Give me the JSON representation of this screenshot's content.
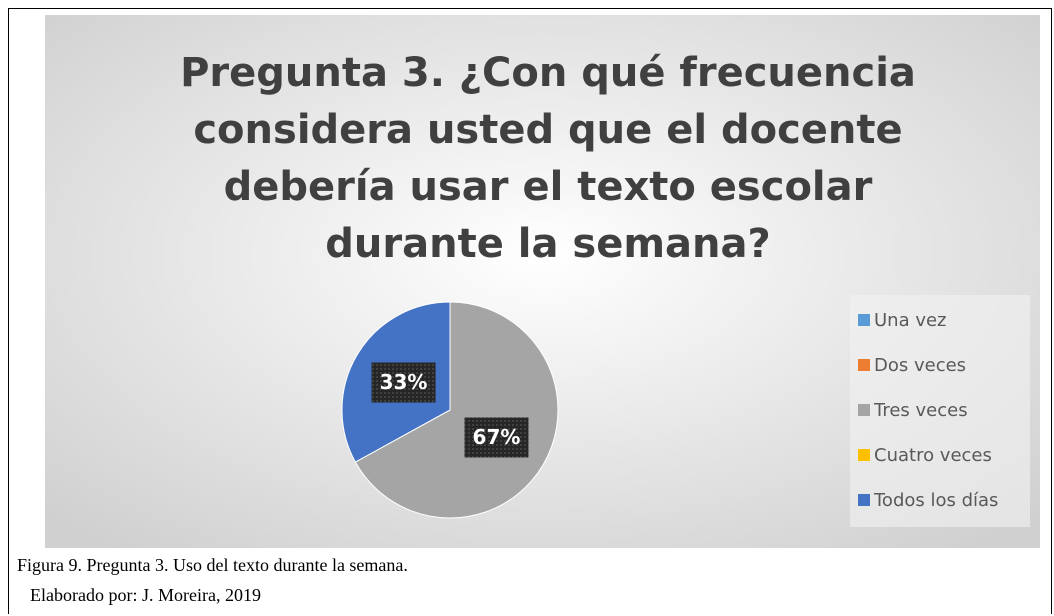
{
  "chart_data": {
    "type": "pie",
    "title": "Pregunta 3. ¿Con qué frecuencia considera usted que el docente debería usar el texto escolar durante la semana?",
    "categories": [
      "Una vez",
      "Dos veces",
      "Tres veces",
      "Cuatro veces",
      "Todos los días"
    ],
    "values": [
      0,
      0,
      67,
      0,
      33
    ],
    "value_labels": [
      null,
      null,
      "67%",
      null,
      "33%"
    ],
    "colors": [
      "#5b9bd5",
      "#ed7d31",
      "#a5a5a5",
      "#ffc000",
      "#4472c4"
    ],
    "legend": "right"
  },
  "caption": [
    "Figura 9. Pregunta 3. Uso del texto durante la semana.",
    "Elaborado por: J. Moreira, 2019"
  ]
}
